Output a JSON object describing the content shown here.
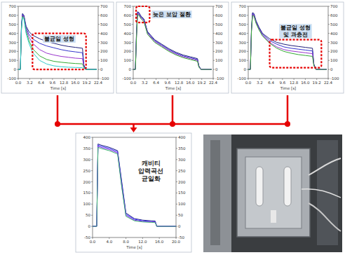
{
  "chart_data": [
    {
      "type": "line",
      "x_label": "Time [s]",
      "x": [
        0,
        0.6,
        0.9,
        1.2,
        1.6,
        2.2,
        3,
        4,
        6,
        8,
        10,
        12,
        14,
        16,
        18,
        18.4,
        19,
        22
      ],
      "series": [
        {
          "color": "#1f1f7a",
          "values": [
            0,
            0,
            500,
            620,
            600,
            480,
            420,
            380,
            340,
            310,
            290,
            270,
            255,
            245,
            235,
            50,
            0,
            0
          ]
        },
        {
          "color": "#3333cc",
          "values": [
            0,
            0,
            480,
            610,
            590,
            460,
            390,
            340,
            290,
            260,
            240,
            220,
            205,
            195,
            185,
            40,
            0,
            0
          ]
        },
        {
          "color": "#9933cc",
          "values": [
            0,
            0,
            470,
            600,
            580,
            440,
            360,
            290,
            220,
            180,
            160,
            145,
            135,
            125,
            120,
            30,
            0,
            0
          ]
        },
        {
          "color": "#33aa33",
          "values": [
            0,
            0,
            450,
            590,
            570,
            420,
            320,
            230,
            150,
            110,
            90,
            80,
            72,
            66,
            62,
            20,
            0,
            0
          ]
        },
        {
          "color": "#33cccc",
          "values": [
            0,
            0,
            440,
            580,
            560,
            400,
            290,
            190,
            100,
            60,
            40,
            30,
            25,
            22,
            20,
            10,
            0,
            0
          ]
        }
      ],
      "xlim": [
        0,
        22.4
      ],
      "xticks": [
        {
          "value": 0,
          "label": "0.0"
        },
        {
          "value": 3.2,
          "label": "3.2"
        },
        {
          "value": 6.4,
          "label": "6.4"
        },
        {
          "value": 9.6,
          "label": "9.6"
        },
        {
          "value": 12.8,
          "label": "12.8"
        },
        {
          "value": 16,
          "label": "16.0"
        },
        {
          "value": 19.2,
          "label": "19.2"
        },
        {
          "value": 22.4,
          "label": "22.4"
        }
      ],
      "ylim": [
        -100,
        700
      ],
      "yticks": [
        -100,
        0,
        100,
        200,
        300,
        400,
        500,
        600,
        700
      ],
      "y2lim": [
        -100,
        700
      ],
      "y2ticks": [
        -100,
        0,
        100,
        200,
        300,
        400,
        500,
        600,
        700
      ],
      "grid": false,
      "annotation": {
        "text": "불균일 성형",
        "x": [
          4,
          19
        ],
        "y": [
          0,
          400
        ]
      }
    },
    {
      "type": "line",
      "x_label": "Time [s]",
      "x": [
        0,
        0.6,
        0.9,
        1.2,
        1.6,
        2.2,
        3,
        4,
        6,
        8,
        10,
        12,
        14,
        16,
        18,
        18.4,
        19,
        22
      ],
      "series": [
        {
          "color": "#1f1f7a",
          "values": [
            0,
            0,
            400,
            640,
            630,
            590,
            560,
            420,
            330,
            280,
            230,
            190,
            160,
            140,
            120,
            40,
            0,
            0
          ]
        },
        {
          "color": "#3333cc",
          "values": [
            0,
            0,
            380,
            630,
            620,
            580,
            550,
            410,
            320,
            270,
            220,
            180,
            150,
            130,
            110,
            35,
            0,
            0
          ]
        },
        {
          "color": "#9933cc",
          "values": [
            0,
            0,
            360,
            620,
            610,
            570,
            540,
            400,
            310,
            260,
            210,
            170,
            140,
            120,
            100,
            30,
            0,
            0
          ]
        },
        {
          "color": "#33aa33",
          "values": [
            0,
            0,
            340,
            610,
            600,
            560,
            530,
            390,
            300,
            250,
            200,
            160,
            130,
            110,
            90,
            25,
            0,
            0
          ]
        }
      ],
      "xlim": [
        0,
        22.4
      ],
      "xticks": [
        {
          "value": 0,
          "label": "0.0"
        },
        {
          "value": 3.2,
          "label": "3.2"
        },
        {
          "value": 6.4,
          "label": "6.4"
        },
        {
          "value": 9.6,
          "label": "9.6"
        },
        {
          "value": 12.8,
          "label": "12.8"
        },
        {
          "value": 16,
          "label": "16.0"
        },
        {
          "value": 19.2,
          "label": "19.2"
        },
        {
          "value": 22.4,
          "label": "22.4"
        }
      ],
      "ylim": [
        -100,
        700
      ],
      "yticks": [
        -100,
        0,
        100,
        200,
        300,
        400,
        500,
        600,
        700
      ],
      "y2lim": [
        -100,
        700
      ],
      "y2ticks": [
        -100,
        0,
        100,
        200,
        300,
        400,
        500,
        600,
        700
      ],
      "grid": false,
      "annotation": {
        "text": "늦은 보압 절환",
        "x": [
          0.8,
          4.6
        ],
        "y": [
          520,
          700
        ]
      }
    },
    {
      "type": "line",
      "x_label": "Time [s]",
      "x": [
        0,
        0.6,
        0.9,
        1.2,
        1.6,
        2.2,
        3,
        4,
        6,
        8,
        10,
        12,
        14,
        16,
        18,
        18.4,
        19,
        22
      ],
      "series": [
        {
          "color": "#1f1f7a",
          "values": [
            0,
            0,
            450,
            630,
            620,
            540,
            470,
            400,
            340,
            300,
            280,
            265,
            255,
            245,
            235,
            60,
            0,
            0
          ]
        },
        {
          "color": "#3333cc",
          "values": [
            0,
            0,
            440,
            620,
            610,
            530,
            460,
            390,
            320,
            280,
            250,
            235,
            225,
            215,
            205,
            50,
            0,
            0
          ]
        },
        {
          "color": "#9933cc",
          "values": [
            0,
            0,
            430,
            610,
            600,
            520,
            450,
            380,
            300,
            250,
            220,
            205,
            195,
            185,
            175,
            45,
            0,
            0
          ]
        },
        {
          "color": "#33aa33",
          "values": [
            0,
            0,
            420,
            600,
            590,
            510,
            440,
            370,
            290,
            235,
            200,
            180,
            165,
            155,
            145,
            40,
            0,
            0
          ]
        }
      ],
      "xlim": [
        0,
        22.4
      ],
      "xticks": [
        {
          "value": 0,
          "label": "0.0"
        },
        {
          "value": 3.2,
          "label": "3.2"
        },
        {
          "value": 6.4,
          "label": "6.4"
        },
        {
          "value": 9.6,
          "label": "9.6"
        },
        {
          "value": 12.8,
          "label": "12.8"
        },
        {
          "value": 16,
          "label": "16.0"
        },
        {
          "value": 19.2,
          "label": "19.2"
        },
        {
          "value": 22.4,
          "label": "22.4"
        }
      ],
      "ylim": [
        -100,
        700
      ],
      "yticks": [
        -100,
        0,
        100,
        200,
        300,
        400,
        500,
        600,
        700
      ],
      "y2lim": [
        -100,
        700
      ],
      "y2ticks": [
        -100,
        0,
        100,
        200,
        300,
        400,
        500,
        600,
        700
      ],
      "grid": false,
      "annotation": {
        "text": "불균일 성형 및 과충전",
        "x": [
          6,
          20.5
        ],
        "y": [
          20,
          330
        ]
      }
    },
    {
      "type": "line",
      "x_label": "Time [s]",
      "x": [
        0,
        1,
        1.3,
        2,
        4,
        6,
        7,
        8,
        10,
        12,
        14,
        15,
        15.4,
        20
      ],
      "series": [
        {
          "color": "#1a1a80",
          "values": [
            0,
            0,
            370,
            365,
            355,
            340,
            200,
            60,
            35,
            28,
            25,
            24,
            0,
            0
          ]
        },
        {
          "color": "#4040ff",
          "values": [
            0,
            0,
            365,
            360,
            350,
            335,
            190,
            55,
            32,
            25,
            22,
            21,
            0,
            0
          ]
        },
        {
          "color": "#8a2be2",
          "values": [
            0,
            0,
            360,
            355,
            345,
            330,
            180,
            50,
            28,
            22,
            20,
            19,
            0,
            0
          ]
        },
        {
          "color": "#3cb371",
          "values": [
            0,
            0,
            355,
            350,
            340,
            325,
            175,
            45,
            25,
            20,
            18,
            17,
            0,
            0
          ]
        }
      ],
      "xlim": [
        0,
        20
      ],
      "xticks": [
        {
          "value": 0,
          "label": "0.0"
        },
        {
          "value": 4,
          "label": "4.0"
        },
        {
          "value": 8,
          "label": "8.0"
        },
        {
          "value": 12,
          "label": "12.0"
        },
        {
          "value": 16,
          "label": "16.0"
        },
        {
          "value": 20,
          "label": "20.0"
        }
      ],
      "ylim": [
        -50,
        400
      ],
      "yticks": [
        -50,
        0,
        50,
        100,
        150,
        200,
        250,
        300,
        350,
        400
      ],
      "y2lim": [
        -50,
        400
      ],
      "y2ticks": [
        -50,
        0,
        50,
        100,
        150,
        200,
        250,
        300,
        350,
        400
      ],
      "grid": false,
      "annotation": {
        "text": "캐비티 압력곡선 균일화",
        "x": [
          9,
          19
        ],
        "y": [
          120,
          300
        ]
      }
    }
  ]
}
